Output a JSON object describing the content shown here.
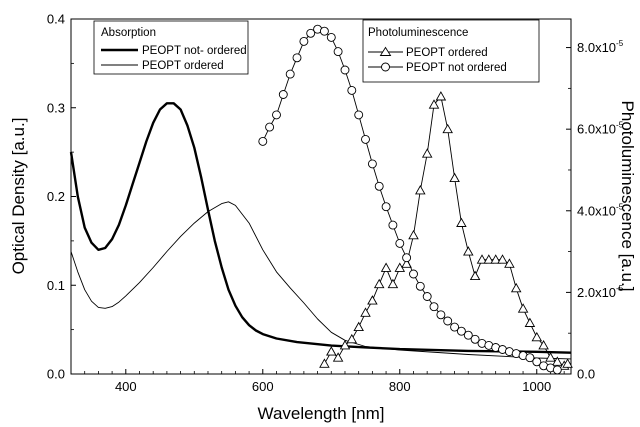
{
  "chart_data": {
    "type": "line",
    "xlabel": "Wavelength [nm]",
    "ylabel_left": "Optical Density [a.u.]",
    "ylabel_right": "Photoluminescence [a.u.]",
    "xlim": [
      320,
      1050
    ],
    "ylim_left": [
      0,
      0.4
    ],
    "ylim_right": [
      0,
      8.7e-05
    ],
    "x_ticks": [
      {
        "label": "400",
        "value": 400
      },
      {
        "label": "600",
        "value": 600
      },
      {
        "label": "800",
        "value": 800
      },
      {
        "label": "1000",
        "value": 1000
      }
    ],
    "y_ticks_left": [
      {
        "label": "0.0",
        "value": 0.0
      },
      {
        "label": "0.1",
        "value": 0.1
      },
      {
        "label": "0.2",
        "value": 0.2
      },
      {
        "label": "0.3",
        "value": 0.3
      },
      {
        "label": "0.4",
        "value": 0.4
      }
    ],
    "y_ticks_right": [
      {
        "mant": "0.0",
        "exp": "",
        "value": 0
      },
      {
        "mant": "2.0x10",
        "exp": "-5",
        "value": 2e-05
      },
      {
        "mant": "4.0x10",
        "exp": "-5",
        "value": 4e-05
      },
      {
        "mant": "6.0x10",
        "exp": "-5",
        "value": 6e-05
      },
      {
        "mant": "8.0x10",
        "exp": "-5",
        "value": 8e-05
      }
    ],
    "legend_left": {
      "title": "Absorption",
      "placement": "top-left",
      "entries": [
        "PEOPT not- ordered",
        "PEOPT ordered"
      ]
    },
    "legend_right": {
      "title": "Photoluminescence",
      "placement": "top-right",
      "entries": [
        "PEOPT ordered",
        "PEOPT not ordered"
      ]
    },
    "series": [
      {
        "name": "PEOPT not- ordered",
        "group": "Absorption",
        "axis": "left",
        "style": "thick",
        "x": [
          320,
          330,
          340,
          350,
          360,
          370,
          380,
          390,
          400,
          410,
          420,
          430,
          440,
          450,
          460,
          470,
          480,
          490,
          500,
          510,
          520,
          530,
          540,
          550,
          560,
          570,
          580,
          590,
          600,
          620,
          650,
          700,
          750,
          800,
          900,
          1000,
          1050
        ],
        "y": [
          0.25,
          0.2,
          0.165,
          0.148,
          0.14,
          0.142,
          0.152,
          0.168,
          0.19,
          0.214,
          0.238,
          0.262,
          0.283,
          0.298,
          0.305,
          0.305,
          0.298,
          0.28,
          0.255,
          0.222,
          0.185,
          0.15,
          0.12,
          0.095,
          0.077,
          0.064,
          0.055,
          0.049,
          0.045,
          0.04,
          0.036,
          0.032,
          0.03,
          0.028,
          0.026,
          0.025,
          0.024
        ]
      },
      {
        "name": "PEOPT ordered",
        "group": "Absorption",
        "axis": "left",
        "style": "thin",
        "x": [
          320,
          330,
          340,
          350,
          360,
          370,
          380,
          390,
          400,
          420,
          440,
          460,
          480,
          500,
          520,
          540,
          550,
          560,
          580,
          600,
          620,
          640,
          660,
          680,
          700,
          720,
          750,
          800,
          900,
          1000,
          1050
        ],
        "y": [
          0.138,
          0.115,
          0.095,
          0.082,
          0.075,
          0.074,
          0.076,
          0.081,
          0.088,
          0.103,
          0.12,
          0.138,
          0.155,
          0.17,
          0.183,
          0.192,
          0.194,
          0.19,
          0.17,
          0.14,
          0.115,
          0.097,
          0.08,
          0.062,
          0.047,
          0.038,
          0.031,
          0.027,
          0.022,
          0.018,
          0.017
        ]
      },
      {
        "name": "PEOPT ordered",
        "group": "Photoluminescence",
        "axis": "right",
        "marker": "triangle",
        "x": [
          690,
          700,
          710,
          720,
          730,
          740,
          750,
          760,
          770,
          780,
          790,
          800,
          810,
          820,
          830,
          840,
          850,
          860,
          870,
          880,
          890,
          900,
          910,
          920,
          930,
          940,
          950,
          960,
          970,
          980,
          990,
          1000,
          1010,
          1020,
          1030,
          1040,
          1045
        ],
        "y": [
          2.5e-06,
          5.5e-06,
          4e-06,
          7e-06,
          8.5e-06,
          1.15e-05,
          1.5e-05,
          1.8e-05,
          2.2e-05,
          2.6e-05,
          2.2e-05,
          2.6e-05,
          2.7e-05,
          3.4e-05,
          4.5e-05,
          5.4e-05,
          6.6e-05,
          6.8e-05,
          6e-05,
          4.8e-05,
          3.7e-05,
          3e-05,
          2.4e-05,
          2.8e-05,
          2.8e-05,
          2.8e-05,
          2.8e-05,
          2.7e-05,
          2.1e-05,
          1.6e-05,
          1.25e-05,
          9e-06,
          7e-06,
          4e-06,
          3e-06,
          2e-06,
          2.5e-06
        ]
      },
      {
        "name": "PEOPT not ordered",
        "group": "Photoluminescence",
        "axis": "right",
        "marker": "circle",
        "x": [
          600,
          610,
          620,
          630,
          640,
          650,
          660,
          670,
          680,
          690,
          700,
          710,
          720,
          730,
          740,
          750,
          760,
          770,
          780,
          790,
          800,
          810,
          820,
          830,
          840,
          850,
          860,
          870,
          880,
          890,
          900,
          910,
          920,
          930,
          940,
          950,
          960,
          970,
          980,
          990,
          1000,
          1010,
          1020,
          1030
        ],
        "y": [
          5.7e-05,
          6.05e-05,
          6.35e-05,
          6.85e-05,
          7.35e-05,
          7.75e-05,
          8.15e-05,
          8.35e-05,
          8.45e-05,
          8.4e-05,
          8.25e-05,
          7.9e-05,
          7.45e-05,
          6.95e-05,
          6.35e-05,
          5.75e-05,
          5.15e-05,
          4.6e-05,
          4.1e-05,
          3.65e-05,
          3.2e-05,
          2.85e-05,
          2.45e-05,
          2.15e-05,
          1.9e-05,
          1.65e-05,
          1.45e-05,
          1.3e-05,
          1.15e-05,
          1.05e-05,
          9.5e-06,
          8.5e-06,
          7.5e-06,
          7e-06,
          6.5e-06,
          6e-06,
          5.5e-06,
          5e-06,
          4.5e-06,
          4e-06,
          3e-06,
          2e-06,
          1.5e-06,
          1e-06
        ]
      }
    ]
  }
}
